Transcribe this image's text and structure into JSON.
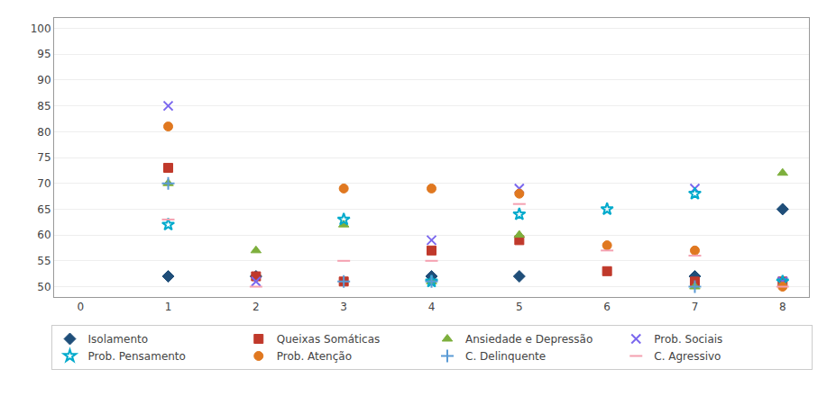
{
  "chart_data": {
    "type": "scatter",
    "x": [
      0,
      1,
      2,
      3,
      4,
      5,
      6,
      7,
      8
    ],
    "series": [
      {
        "name": "Isolamento",
        "color": "#1f4e79",
        "marker": "diamond",
        "values": [
          null,
          52,
          52,
          null,
          52,
          52,
          null,
          52,
          65
        ]
      },
      {
        "name": "Queixas Somáticas",
        "color": "#c0392b",
        "marker": "square",
        "values": [
          null,
          73,
          52,
          51,
          57,
          59,
          53,
          51,
          51
        ]
      },
      {
        "name": "Ansiedade e Depressão",
        "color": "#7daf3c",
        "marker": "triangle-up",
        "values": [
          null,
          70,
          57,
          62,
          51,
          60,
          null,
          50,
          72
        ]
      },
      {
        "name": "Prob. Sociais",
        "color": "#7b68ee",
        "marker": "x-thin-open",
        "values": [
          null,
          85,
          51,
          null,
          59,
          69,
          null,
          69,
          51
        ]
      },
      {
        "name": "Prob. Pensamento",
        "color": "#00aacc",
        "marker": "star-open",
        "values": [
          null,
          62,
          null,
          63,
          51,
          64,
          65,
          68,
          51
        ]
      },
      {
        "name": "Prob. Atenção",
        "color": "#e07820",
        "marker": "circle",
        "values": [
          null,
          81,
          null,
          69,
          69,
          68,
          58,
          57,
          50
        ]
      },
      {
        "name": "C. Delinquente",
        "color": "#5b9bd5",
        "marker": "cross-thin-open",
        "values": [
          null,
          70,
          null,
          51,
          51,
          null,
          null,
          50,
          null
        ]
      },
      {
        "name": "C. Agressivo",
        "color": "#f4a0b0",
        "marker": "line-ew-open",
        "values": [
          null,
          63,
          50,
          55,
          55,
          66,
          57,
          56,
          50
        ]
      }
    ],
    "xlim": [
      -0.3,
      8.3
    ],
    "xticks": [
      0,
      1,
      2,
      3,
      4,
      5,
      6,
      7,
      8
    ],
    "ylim": [
      48,
      102
    ],
    "yticks": [
      50,
      55,
      60,
      65,
      70,
      75,
      80,
      85,
      90,
      95,
      100
    ],
    "grid": "y",
    "legend": "bottom"
  }
}
